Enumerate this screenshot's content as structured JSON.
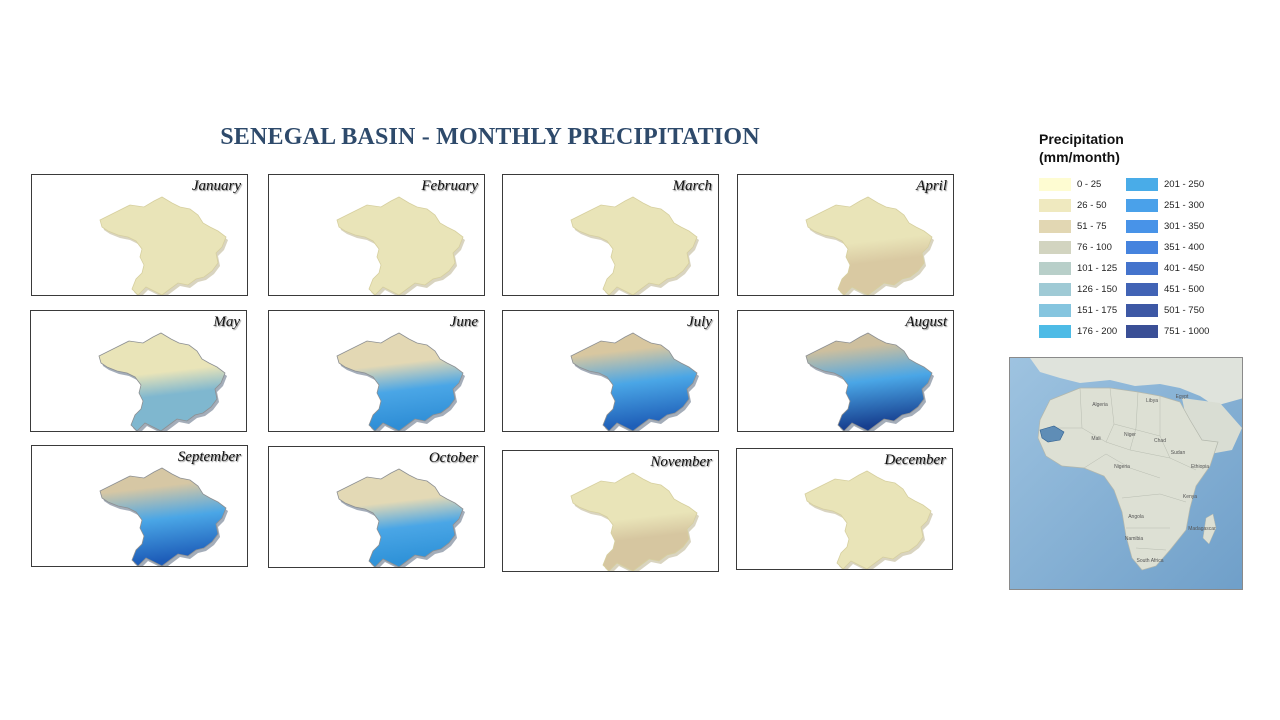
{
  "title": "SENEGAL BASIN - MONTHLY PRECIPITATION",
  "months": [
    {
      "name": "January",
      "top": "#e9e4b8",
      "bottom": "#e9e4b8",
      "wet": 0
    },
    {
      "name": "February",
      "top": "#e9e4b8",
      "bottom": "#e9e4b8",
      "wet": 0
    },
    {
      "name": "March",
      "top": "#e9e4b8",
      "bottom": "#e9e4b8",
      "wet": 0
    },
    {
      "name": "April",
      "top": "#e9e4b8",
      "bottom": "#d9c9a2",
      "wet": 0.1
    },
    {
      "name": "May",
      "top": "#e9e4b8",
      "bottom": "#7fb7cf",
      "wet": 0.25
    },
    {
      "name": "June",
      "top": "#e3d8b4",
      "bottom": "#2f8ed6",
      "wet": 0.5
    },
    {
      "name": "July",
      "top": "#d8c7a0",
      "bottom": "#1f5fb8",
      "wet": 0.9
    },
    {
      "name": "August",
      "top": "#cdbf9e",
      "bottom": "#173f8f",
      "wet": 1.0
    },
    {
      "name": "September",
      "top": "#d6c7a4",
      "bottom": "#1d5cb8",
      "wet": 0.85
    },
    {
      "name": "October",
      "top": "#e3d9b5",
      "bottom": "#2f92d8",
      "wet": 0.45
    },
    {
      "name": "November",
      "top": "#e9e4b8",
      "bottom": "#d6c6a0",
      "wet": 0.08
    },
    {
      "name": "December",
      "top": "#e9e4b8",
      "bottom": "#e9e4b8",
      "wet": 0
    }
  ],
  "legend": {
    "title_line1": "Precipitation",
    "title_line2": "(mm/month)",
    "classes": [
      {
        "label": "0 - 25",
        "color": "#fefcd2"
      },
      {
        "label": "26 - 50",
        "color": "#efe9bf"
      },
      {
        "label": "51 - 75",
        "color": "#e2d7b3"
      },
      {
        "label": "76 - 100",
        "color": "#d2d4c0"
      },
      {
        "label": "101 - 125",
        "color": "#b8cfc9"
      },
      {
        "label": "126 - 150",
        "color": "#9fcad5"
      },
      {
        "label": "151 - 175",
        "color": "#85c5df"
      },
      {
        "label": "176 - 200",
        "color": "#4dbbe6"
      },
      {
        "label": "201 - 250",
        "color": "#49ace8"
      },
      {
        "label": "251 - 300",
        "color": "#4aa1ea"
      },
      {
        "label": "301 - 350",
        "color": "#4893e8"
      },
      {
        "label": "351 - 400",
        "color": "#4583de"
      },
      {
        "label": "401 - 450",
        "color": "#4473cc"
      },
      {
        "label": "451 - 500",
        "color": "#4163b5"
      },
      {
        "label": "501 - 750",
        "color": "#3d58a5"
      },
      {
        "label": "751 - 1000",
        "color": "#3a4f96"
      }
    ]
  },
  "inset_map": {
    "labels": [
      "Algeria",
      "Libya",
      "Egypt",
      "Mali",
      "Niger",
      "Chad",
      "Sudan",
      "Nigeria",
      "Ethiopia",
      "Kenya",
      "Angola",
      "Namibia",
      "South Africa",
      "Madagascar"
    ],
    "highlight_color": "#5f8db6"
  }
}
